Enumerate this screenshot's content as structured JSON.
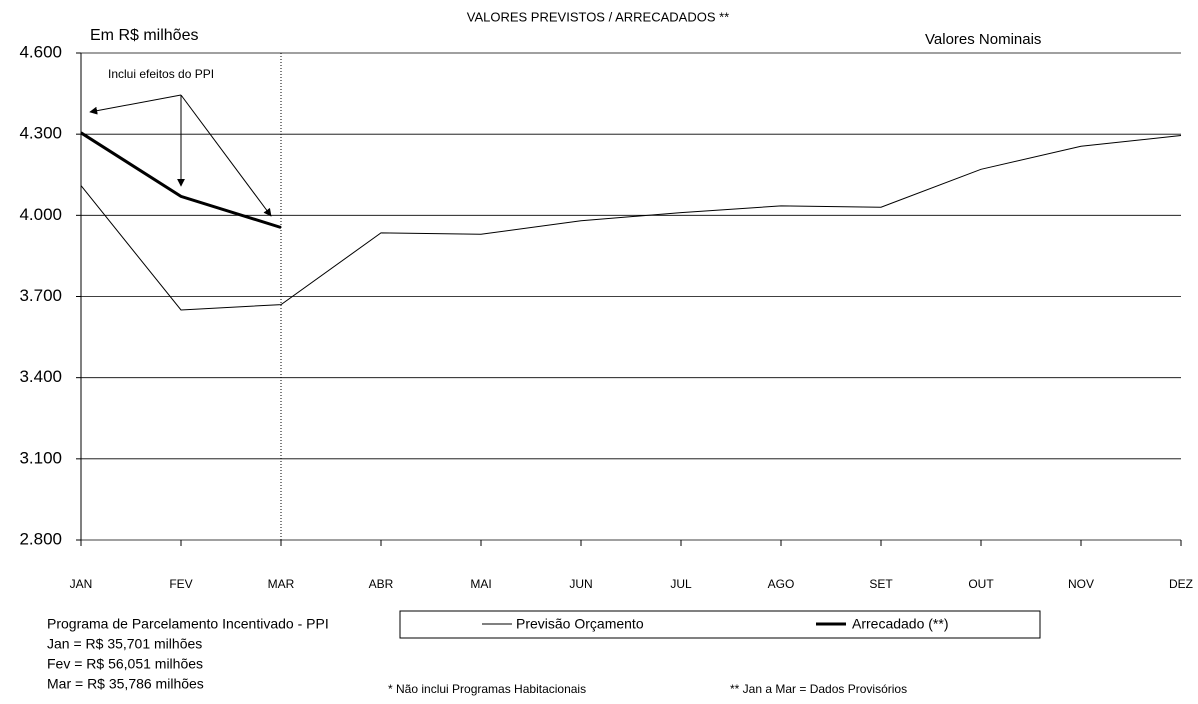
{
  "chart_data": {
    "type": "line",
    "title": "VALORES PREVISTOS / ARRECADADOS **",
    "y_unit_label": "Em R$ milhões",
    "annotation": "Valores Nominais",
    "arrow_note": "Inclui efeitos do PPI",
    "categories": [
      "JAN",
      "FEV",
      "MAR",
      "ABR",
      "MAI",
      "JUN",
      "JUL",
      "AGO",
      "SET",
      "OUT",
      "NOV",
      "DEZ"
    ],
    "series": [
      {
        "name": "Previsão Orçamento",
        "color": "#000000",
        "width": 1,
        "values": [
          4110,
          3650,
          3670,
          3935,
          3930,
          3980,
          4010,
          4035,
          4030,
          4170,
          4255,
          4295
        ]
      },
      {
        "name": "Arrecadado (**)",
        "color": "#000000",
        "width": 3,
        "values": [
          4305,
          4070,
          3955,
          null,
          null,
          null,
          null,
          null,
          null,
          null,
          null,
          null
        ]
      }
    ],
    "ylim": [
      2800,
      4600
    ],
    "yticks": [
      {
        "value": 2800,
        "label": "2.800"
      },
      {
        "value": 3100,
        "label": "3.100"
      },
      {
        "value": 3400,
        "label": "3.400"
      },
      {
        "value": 3700,
        "label": "3.700"
      },
      {
        "value": 4000,
        "label": "4.000"
      },
      {
        "value": 4300,
        "label": "4.300"
      },
      {
        "value": 4600,
        "label": "4.600"
      }
    ],
    "grid": true,
    "ppi_notes": [
      "Programa de Parcelamento Incentivado - PPI",
      "Jan = R$ 35,701 milhões",
      "Fev = R$ 56,051 milhões",
      "Mar = R$ 35,786 milhões"
    ],
    "footnotes": [
      "* Não inclui Programas Habitacionais",
      "** Jan a Mar  = Dados  Provisórios"
    ]
  }
}
